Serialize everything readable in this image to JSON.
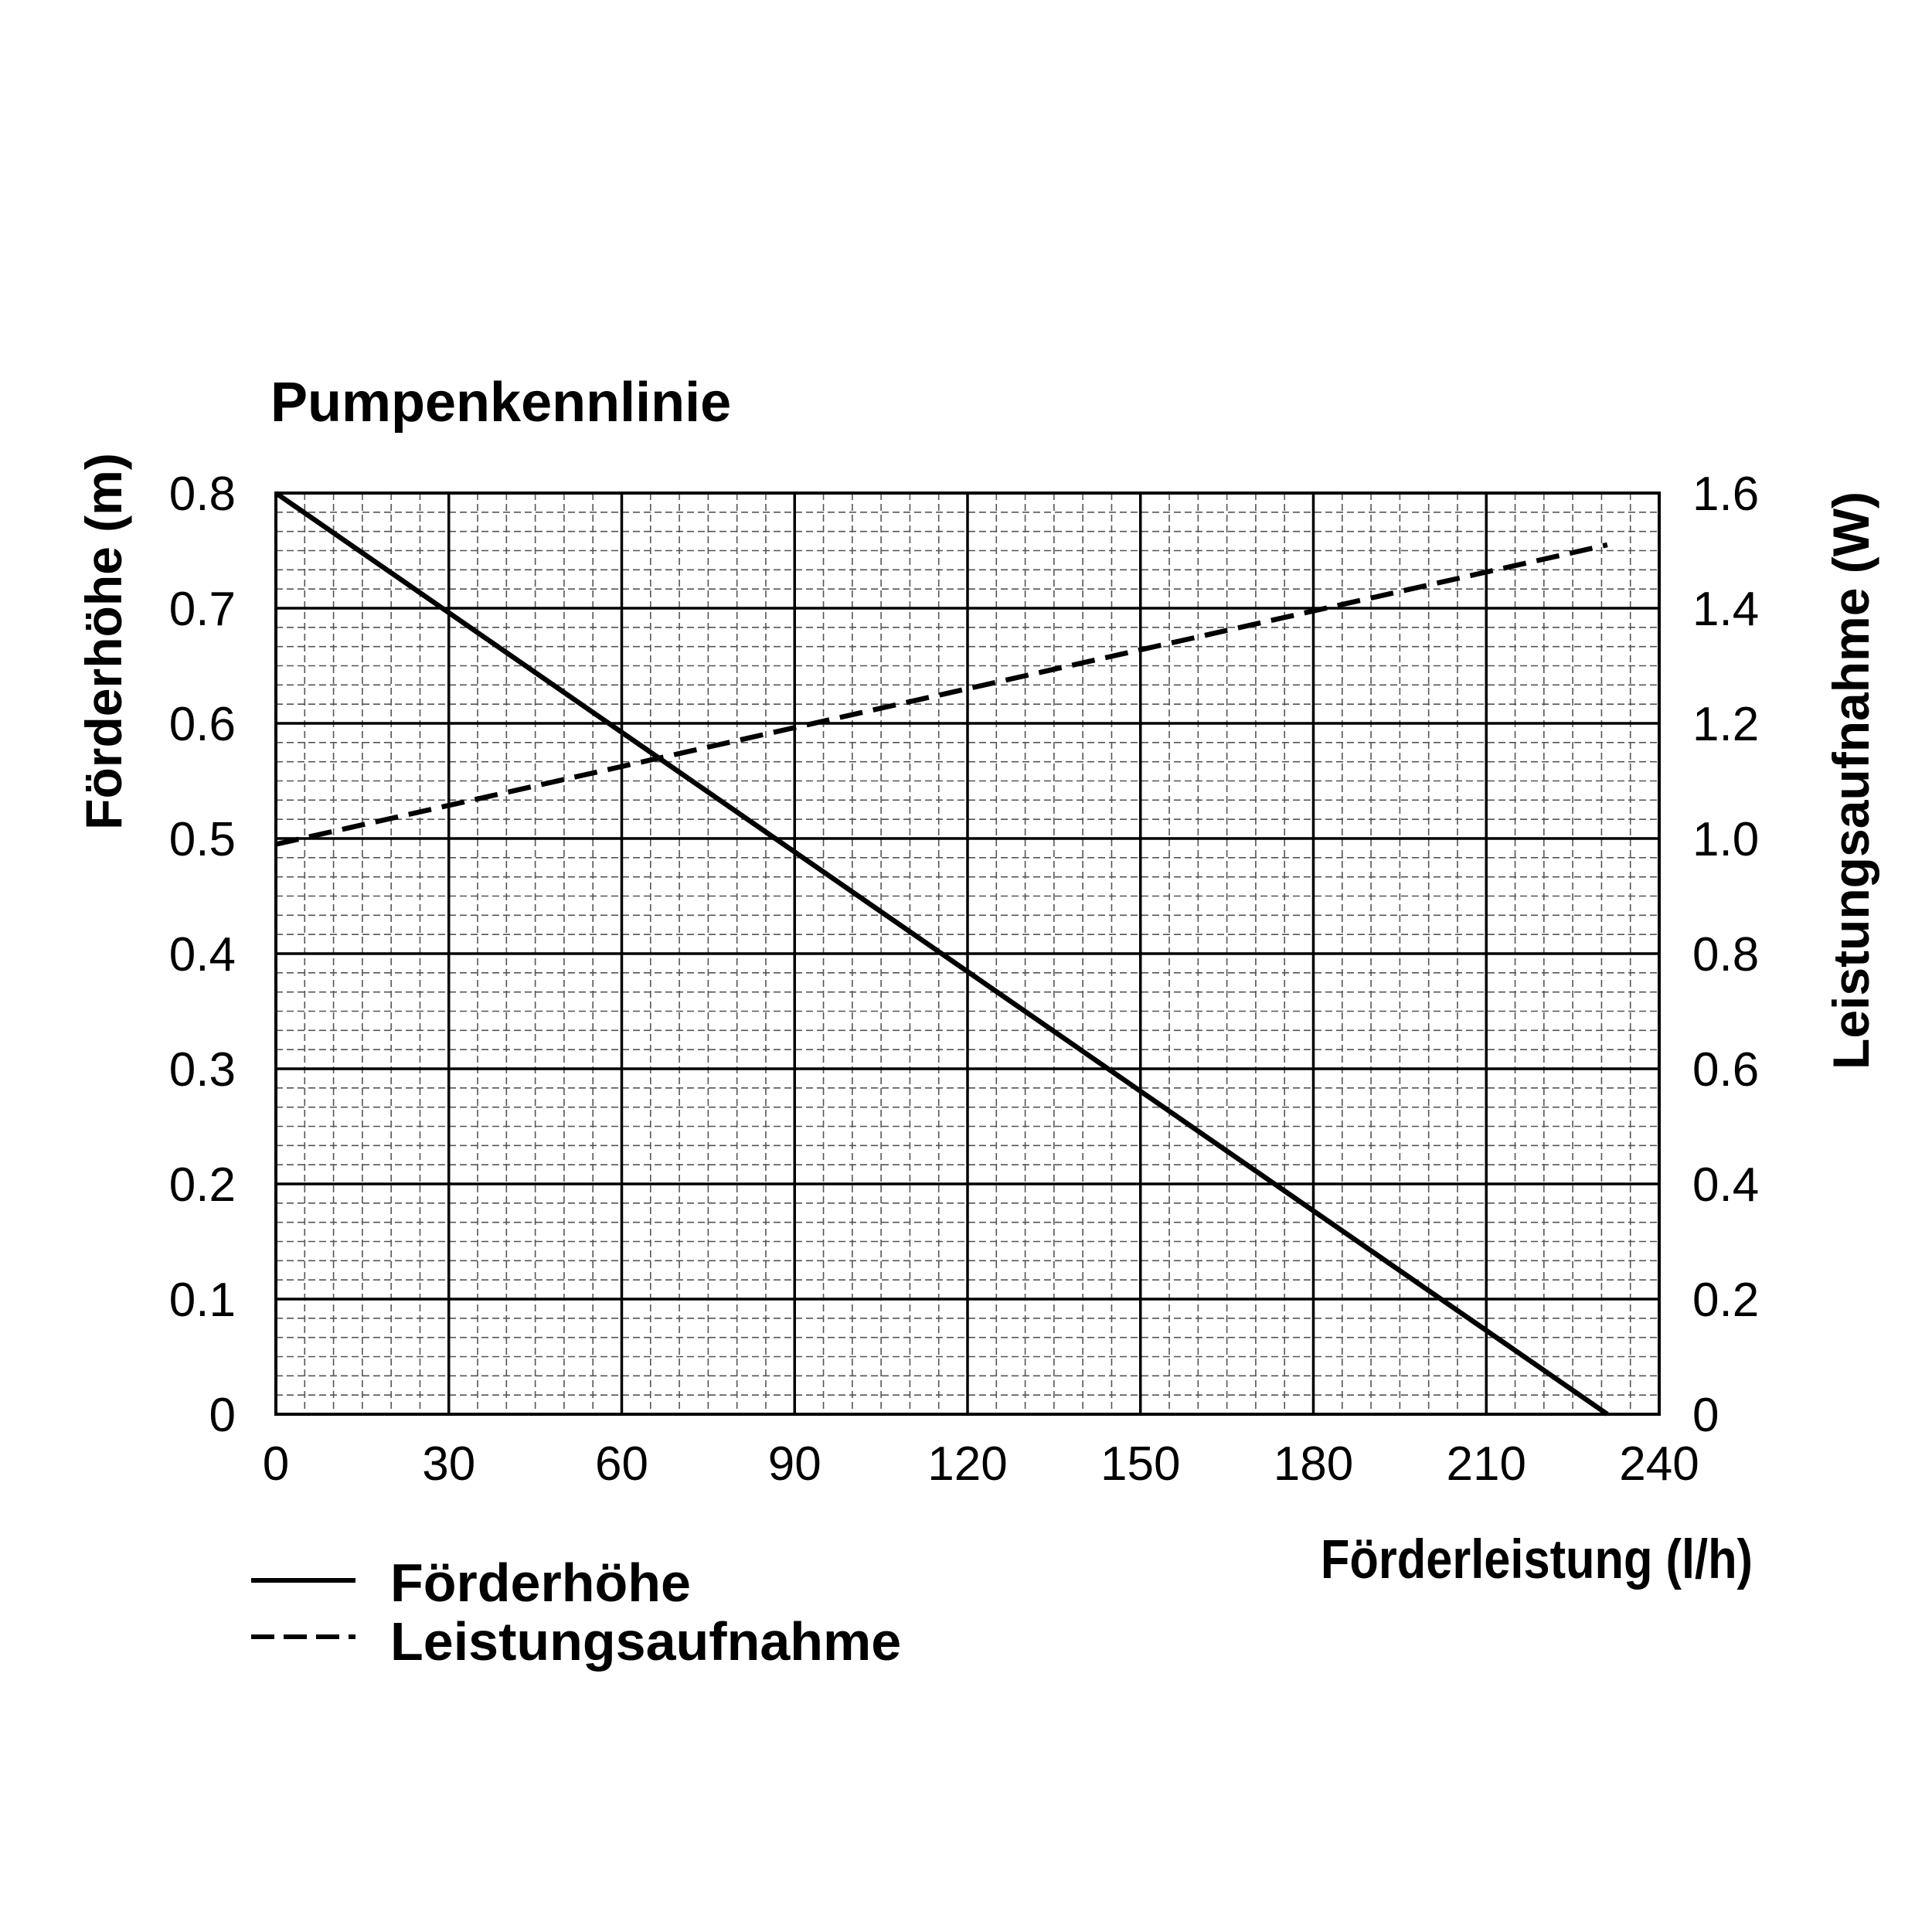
{
  "chart_data": {
    "type": "line",
    "title": "Pumpenkennlinie",
    "xlabel": "Förderleistung (l/h)",
    "ylabel_left": "Förderhöhe (m)",
    "ylabel_right": "Leistungsaufnahme (W)",
    "xlim": [
      0,
      240
    ],
    "ylim_left": [
      0,
      0.8
    ],
    "ylim_right": [
      0,
      1.6
    ],
    "x_ticks": [
      "0",
      "30",
      "60",
      "90",
      "120",
      "150",
      "180",
      "210",
      "240"
    ],
    "y_ticks_left": [
      "0",
      "0.1",
      "0.2",
      "0.3",
      "0.4",
      "0.5",
      "0.6",
      "0.7",
      "0.8"
    ],
    "y_ticks_right": [
      "0",
      "0.2",
      "0.4",
      "0.6",
      "0.8",
      "1.0",
      "1.2",
      "1.4",
      "1.6"
    ],
    "grid": true,
    "legend_position": "bottom-left",
    "series": [
      {
        "name": "Förderhöhe",
        "axis": "left",
        "style": "solid",
        "color": "#000000",
        "x": [
          0,
          231
        ],
        "y": [
          0.8,
          0
        ]
      },
      {
        "name": "Leistungsaufnahme",
        "axis": "right",
        "style": "dashed",
        "color": "#000000",
        "x": [
          0,
          231
        ],
        "y": [
          0.99,
          1.51
        ]
      }
    ]
  }
}
